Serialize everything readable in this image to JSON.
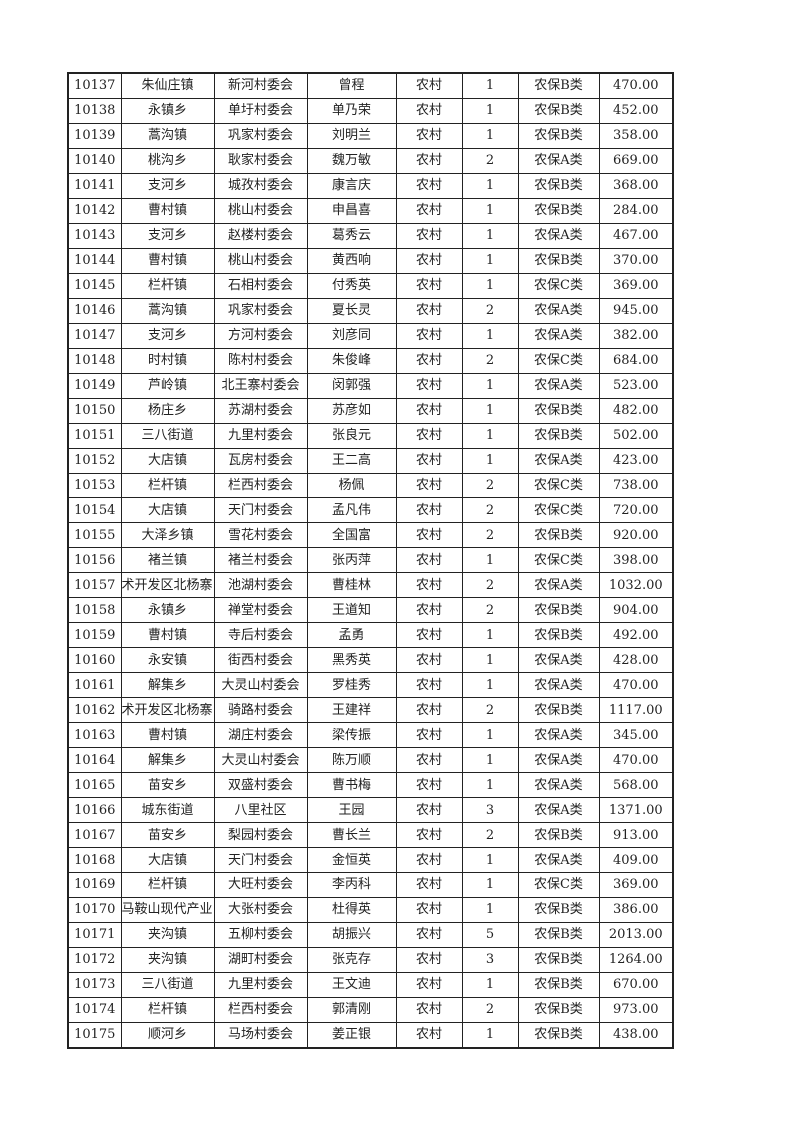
{
  "table": {
    "rows": [
      [
        "10137",
        "朱仙庄镇",
        "新河村委会",
        "曾程",
        "农村",
        "1",
        "农保B类",
        "470.00"
      ],
      [
        "10138",
        "永镇乡",
        "单圩村委会",
        "单乃荣",
        "农村",
        "1",
        "农保B类",
        "452.00"
      ],
      [
        "10139",
        "蒿沟镇",
        "巩家村委会",
        "刘明兰",
        "农村",
        "1",
        "农保B类",
        "358.00"
      ],
      [
        "10140",
        "桃沟乡",
        "耿家村委会",
        "魏万敏",
        "农村",
        "2",
        "农保A类",
        "669.00"
      ],
      [
        "10141",
        "支河乡",
        "城孜村委会",
        "康言庆",
        "农村",
        "1",
        "农保B类",
        "368.00"
      ],
      [
        "10142",
        "曹村镇",
        "桃山村委会",
        "申昌喜",
        "农村",
        "1",
        "农保B类",
        "284.00"
      ],
      [
        "10143",
        "支河乡",
        "赵楼村委会",
        "葛秀云",
        "农村",
        "1",
        "农保A类",
        "467.00"
      ],
      [
        "10144",
        "曹村镇",
        "桃山村委会",
        "黄西响",
        "农村",
        "1",
        "农保B类",
        "370.00"
      ],
      [
        "10145",
        "栏杆镇",
        "石相村委会",
        "付秀英",
        "农村",
        "1",
        "农保C类",
        "369.00"
      ],
      [
        "10146",
        "蒿沟镇",
        "巩家村委会",
        "夏长灵",
        "农村",
        "2",
        "农保A类",
        "945.00"
      ],
      [
        "10147",
        "支河乡",
        "方河村委会",
        "刘彦同",
        "农村",
        "1",
        "农保A类",
        "382.00"
      ],
      [
        "10148",
        "时村镇",
        "陈村村委会",
        "朱俊峰",
        "农村",
        "2",
        "农保C类",
        "684.00"
      ],
      [
        "10149",
        "芦岭镇",
        "北王寨村委会",
        "闵郭强",
        "农村",
        "1",
        "农保A类",
        "523.00"
      ],
      [
        "10150",
        "杨庄乡",
        "苏湖村委会",
        "苏彦如",
        "农村",
        "1",
        "农保B类",
        "482.00"
      ],
      [
        "10151",
        "三八街道",
        "九里村委会",
        "张良元",
        "农村",
        "1",
        "农保B类",
        "502.00"
      ],
      [
        "10152",
        "大店镇",
        "瓦房村委会",
        "王二高",
        "农村",
        "1",
        "农保A类",
        "423.00"
      ],
      [
        "10153",
        "栏杆镇",
        "栏西村委会",
        "杨佩",
        "农村",
        "2",
        "农保C类",
        "738.00"
      ],
      [
        "10154",
        "大店镇",
        "天门村委会",
        "孟凡伟",
        "农村",
        "2",
        "农保C类",
        "720.00"
      ],
      [
        "10155",
        "大泽乡镇",
        "雪花村委会",
        "全国富",
        "农村",
        "2",
        "农保B类",
        "920.00"
      ],
      [
        "10156",
        "褚兰镇",
        "褚兰村委会",
        "张丙萍",
        "农村",
        "1",
        "农保C类",
        "398.00"
      ],
      [
        "10157",
        "术开发区北杨寨",
        "池湖村委会",
        "曹桂林",
        "农村",
        "2",
        "农保A类",
        "1032.00"
      ],
      [
        "10158",
        "永镇乡",
        "禅堂村委会",
        "王道知",
        "农村",
        "2",
        "农保B类",
        "904.00"
      ],
      [
        "10159",
        "曹村镇",
        "寺后村委会",
        "孟勇",
        "农村",
        "1",
        "农保B类",
        "492.00"
      ],
      [
        "10160",
        "永安镇",
        "街西村委会",
        "黑秀英",
        "农村",
        "1",
        "农保A类",
        "428.00"
      ],
      [
        "10161",
        "解集乡",
        "大灵山村委会",
        "罗桂秀",
        "农村",
        "1",
        "农保A类",
        "470.00"
      ],
      [
        "10162",
        "术开发区北杨寨",
        "骑路村委会",
        "王建祥",
        "农村",
        "2",
        "农保B类",
        "1117.00"
      ],
      [
        "10163",
        "曹村镇",
        "湖庄村委会",
        "梁传振",
        "农村",
        "1",
        "农保A类",
        "345.00"
      ],
      [
        "10164",
        "解集乡",
        "大灵山村委会",
        "陈万顺",
        "农村",
        "1",
        "农保A类",
        "470.00"
      ],
      [
        "10165",
        "苗安乡",
        "双盛村委会",
        "曹书梅",
        "农村",
        "1",
        "农保A类",
        "568.00"
      ],
      [
        "10166",
        "城东街道",
        "八里社区",
        "王园",
        "农村",
        "3",
        "农保A类",
        "1371.00"
      ],
      [
        "10167",
        "苗安乡",
        "梨园村委会",
        "曹长兰",
        "农村",
        "2",
        "农保B类",
        "913.00"
      ],
      [
        "10168",
        "大店镇",
        "天门村委会",
        "金恒英",
        "农村",
        "1",
        "农保A类",
        "409.00"
      ],
      [
        "10169",
        "栏杆镇",
        "大旺村委会",
        "李丙科",
        "农村",
        "1",
        "农保C类",
        "369.00"
      ],
      [
        "10170",
        "马鞍山现代产业",
        "大张村委会",
        "杜得英",
        "农村",
        "1",
        "农保B类",
        "386.00"
      ],
      [
        "10171",
        "夹沟镇",
        "五柳村委会",
        "胡振兴",
        "农村",
        "5",
        "农保B类",
        "2013.00"
      ],
      [
        "10172",
        "夹沟镇",
        "湖町村委会",
        "张克存",
        "农村",
        "3",
        "农保B类",
        "1264.00"
      ],
      [
        "10173",
        "三八街道",
        "九里村委会",
        "王文迪",
        "农村",
        "1",
        "农保B类",
        "670.00"
      ],
      [
        "10174",
        "栏杆镇",
        "栏西村委会",
        "郭清刚",
        "农村",
        "2",
        "农保B类",
        "973.00"
      ],
      [
        "10175",
        "顺河乡",
        "马场村委会",
        "姜正银",
        "农村",
        "1",
        "农保B类",
        "438.00"
      ]
    ]
  }
}
